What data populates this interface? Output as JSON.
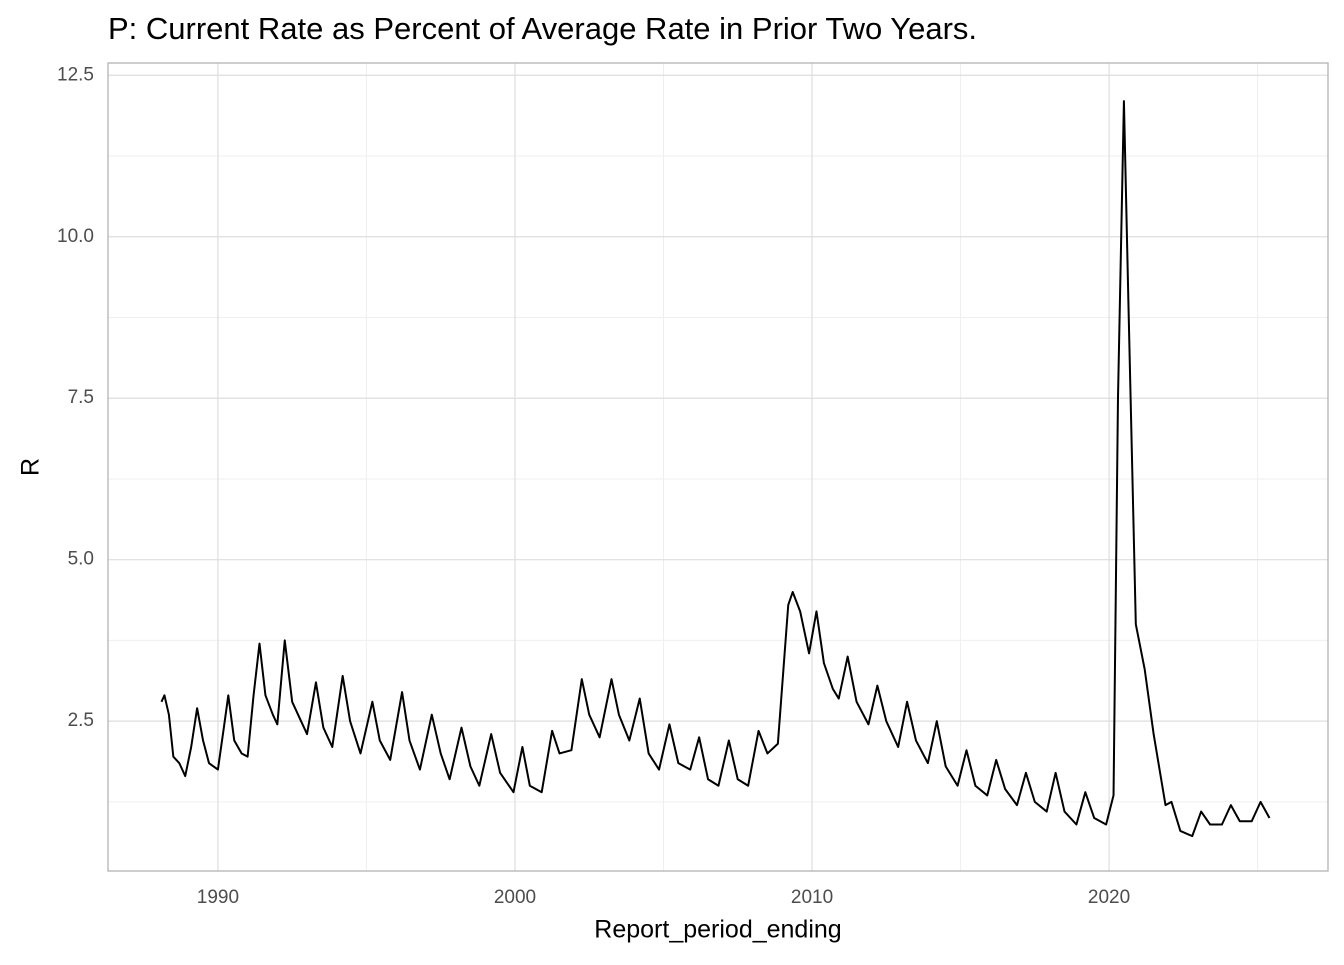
{
  "chart_data": {
    "type": "line",
    "title": "P: Current Rate as Percent of Average Rate in Prior Two Years.",
    "x_label": "Report_period_ending",
    "y_label": "R",
    "x": [
      1988.1,
      1988.2,
      1988.35,
      1988.5,
      1988.7,
      1988.9,
      1989.1,
      1989.3,
      1989.5,
      1989.7,
      1990.0,
      1990.2,
      1990.35,
      1990.55,
      1990.8,
      1991.0,
      1991.2,
      1991.4,
      1991.6,
      1991.85,
      1992.0,
      1992.25,
      1992.5,
      1992.8,
      1993.0,
      1993.3,
      1993.55,
      1993.85,
      1994.2,
      1994.45,
      1994.8,
      1995.2,
      1995.45,
      1995.8,
      1996.2,
      1996.45,
      1996.8,
      1997.2,
      1997.5,
      1997.8,
      1998.2,
      1998.5,
      1998.8,
      1999.2,
      1999.5,
      1999.95,
      2000.25,
      2000.5,
      2000.9,
      2001.25,
      2001.5,
      2001.9,
      2002.25,
      2002.5,
      2002.85,
      2003.25,
      2003.5,
      2003.85,
      2004.2,
      2004.5,
      2004.85,
      2005.2,
      2005.5,
      2005.9,
      2006.2,
      2006.5,
      2006.85,
      2007.2,
      2007.5,
      2007.85,
      2008.2,
      2008.5,
      2008.85,
      2009.2,
      2009.35,
      2009.6,
      2009.9,
      2010.15,
      2010.4,
      2010.7,
      2010.9,
      2011.2,
      2011.5,
      2011.9,
      2012.2,
      2012.5,
      2012.9,
      2013.2,
      2013.5,
      2013.9,
      2014.2,
      2014.5,
      2014.9,
      2015.2,
      2015.5,
      2015.9,
      2016.2,
      2016.5,
      2016.9,
      2017.2,
      2017.5,
      2017.9,
      2018.2,
      2018.5,
      2018.9,
      2019.2,
      2019.5,
      2019.9,
      2020.15,
      2020.3,
      2020.5,
      2020.65,
      2020.9,
      2021.2,
      2021.5,
      2021.9,
      2022.1,
      2022.4,
      2022.8,
      2023.1,
      2023.4,
      2023.8,
      2024.1,
      2024.4,
      2024.8,
      2025.1,
      2025.4
    ],
    "series": [
      {
        "name": "R",
        "color": "#000000",
        "values": [
          2.8,
          2.9,
          2.6,
          1.95,
          1.85,
          1.65,
          2.1,
          2.7,
          2.2,
          1.85,
          1.75,
          2.4,
          2.9,
          2.2,
          2.0,
          1.95,
          2.9,
          3.7,
          2.9,
          2.6,
          2.45,
          3.75,
          2.8,
          2.5,
          2.3,
          3.1,
          2.4,
          2.1,
          3.2,
          2.5,
          2.0,
          2.8,
          2.2,
          1.9,
          2.95,
          2.2,
          1.75,
          2.6,
          2.0,
          1.6,
          2.4,
          1.8,
          1.5,
          2.3,
          1.7,
          1.4,
          2.1,
          1.5,
          1.4,
          2.35,
          2.0,
          2.05,
          3.15,
          2.6,
          2.25,
          3.15,
          2.6,
          2.2,
          2.85,
          2.0,
          1.75,
          2.45,
          1.85,
          1.75,
          2.25,
          1.6,
          1.5,
          2.2,
          1.6,
          1.5,
          2.35,
          2.0,
          2.15,
          4.3,
          4.5,
          4.2,
          3.55,
          4.2,
          3.4,
          3.0,
          2.85,
          3.5,
          2.8,
          2.45,
          3.05,
          2.5,
          2.1,
          2.8,
          2.2,
          1.85,
          2.5,
          1.8,
          1.5,
          2.05,
          1.5,
          1.35,
          1.9,
          1.45,
          1.2,
          1.7,
          1.25,
          1.1,
          1.7,
          1.1,
          0.9,
          1.4,
          1.0,
          0.9,
          1.35,
          7.5,
          12.1,
          9.0,
          4.0,
          3.3,
          2.3,
          1.2,
          1.25,
          0.8,
          0.72,
          1.1,
          0.9,
          0.9,
          1.2,
          0.95,
          0.95,
          1.25,
          1.0
        ]
      }
    ],
    "xlim": [
      1986.3,
      2027.37
    ],
    "ylim": [
      0.18,
      12.69
    ],
    "xticks": [
      1990,
      2000,
      2010,
      2020
    ],
    "yticks": [
      2.5,
      {
        "value": 5,
        "label": "5.0"
      },
      7.5,
      {
        "value": 10,
        "label": "10.0"
      },
      12.5
    ],
    "xminor": [
      1995,
      2005,
      2015,
      2025
    ],
    "yminor": [
      1.25,
      3.75,
      6.25,
      8.75,
      11.25
    ],
    "grid": true
  }
}
